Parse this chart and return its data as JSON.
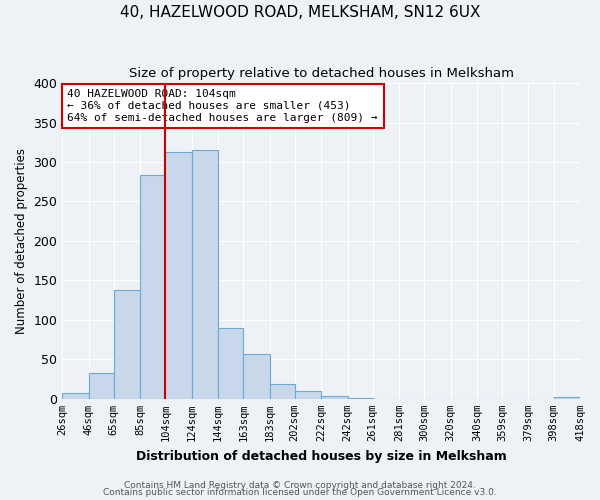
{
  "title": "40, HAZELWOOD ROAD, MELKSHAM, SN12 6UX",
  "subtitle": "Size of property relative to detached houses in Melksham",
  "xlabel": "Distribution of detached houses by size in Melksham",
  "ylabel": "Number of detached properties",
  "bar_color": "#c8d8ea",
  "bar_edge_color": "#6aaad4",
  "background_color": "#eef2f7",
  "plot_bg_color": "#eef2f7",
  "bin_edges": [
    26,
    46,
    65,
    85,
    104,
    124,
    144,
    163,
    183,
    202,
    222,
    242,
    261,
    281,
    300,
    320,
    340,
    359,
    379,
    398,
    418
  ],
  "bin_labels": [
    "26sqm",
    "46sqm",
    "65sqm",
    "85sqm",
    "104sqm",
    "124sqm",
    "144sqm",
    "163sqm",
    "183sqm",
    "202sqm",
    "222sqm",
    "242sqm",
    "261sqm",
    "281sqm",
    "300sqm",
    "320sqm",
    "340sqm",
    "359sqm",
    "379sqm",
    "398sqm",
    "418sqm"
  ],
  "counts": [
    7,
    33,
    138,
    283,
    313,
    315,
    90,
    57,
    19,
    10,
    3,
    1,
    0,
    0,
    0,
    0,
    0,
    0,
    0,
    2
  ],
  "property_size": 104,
  "vline_color": "#cc0000",
  "annotation_line1": "40 HAZELWOOD ROAD: 104sqm",
  "annotation_line2": "← 36% of detached houses are smaller (453)",
  "annotation_line3": "64% of semi-detached houses are larger (809) →",
  "annotation_box_color": "#ffffff",
  "annotation_box_edge_color": "#cc0000",
  "ylim": [
    0,
    400
  ],
  "yticks": [
    0,
    50,
    100,
    150,
    200,
    250,
    300,
    350,
    400
  ],
  "footer1": "Contains HM Land Registry data © Crown copyright and database right 2024.",
  "footer2": "Contains public sector information licensed under the Open Government Licence v3.0."
}
